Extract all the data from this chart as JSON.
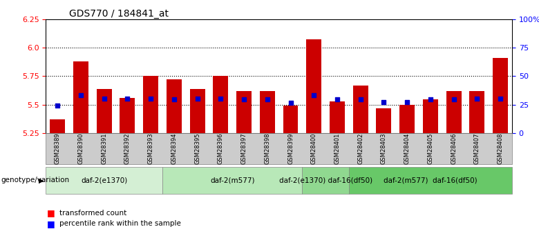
{
  "title": "GDS770 / 184841_at",
  "samples": [
    "GSM28389",
    "GSM28390",
    "GSM28391",
    "GSM28392",
    "GSM28393",
    "GSM28394",
    "GSM28395",
    "GSM28396",
    "GSM28397",
    "GSM28398",
    "GSM28399",
    "GSM28400",
    "GSM28401",
    "GSM28402",
    "GSM28403",
    "GSM28404",
    "GSM28405",
    "GSM28406",
    "GSM28407",
    "GSM28408"
  ],
  "bar_values": [
    5.37,
    5.88,
    5.64,
    5.56,
    5.75,
    5.72,
    5.64,
    5.75,
    5.62,
    5.62,
    5.49,
    6.07,
    5.53,
    5.67,
    5.47,
    5.5,
    5.55,
    5.62,
    5.62,
    5.91
  ],
  "percentile_values": [
    5.495,
    5.585,
    5.555,
    5.555,
    5.555,
    5.545,
    5.555,
    5.555,
    5.545,
    5.545,
    5.515,
    5.585,
    5.545,
    5.545,
    5.525,
    5.525,
    5.545,
    5.545,
    5.555,
    5.555
  ],
  "ylim_left": [
    5.25,
    6.25
  ],
  "ylim_right": [
    0,
    100
  ],
  "yticks_left": [
    5.25,
    5.5,
    5.75,
    6.0,
    6.25
  ],
  "yticks_right": [
    0,
    25,
    50,
    75,
    100
  ],
  "bar_color": "#cc0000",
  "marker_color": "#0000cc",
  "base_value": 5.25,
  "groups": [
    {
      "label": "daf-2(e1370)",
      "start": 0,
      "end": 5,
      "color": "#d4efd4"
    },
    {
      "label": "daf-2(m577)",
      "start": 5,
      "end": 11,
      "color": "#b8e8b8"
    },
    {
      "label": "daf-2(e1370) daf-16(df50)",
      "start": 11,
      "end": 13,
      "color": "#90d890"
    },
    {
      "label": "daf-2(m577)  daf-16(df50)",
      "start": 13,
      "end": 20,
      "color": "#68c868"
    }
  ],
  "genotype_label": "genotype/variation",
  "legend_items": [
    {
      "label": "transformed count",
      "color": "#cc0000"
    },
    {
      "label": "percentile rank within the sample",
      "color": "#0000cc"
    }
  ]
}
